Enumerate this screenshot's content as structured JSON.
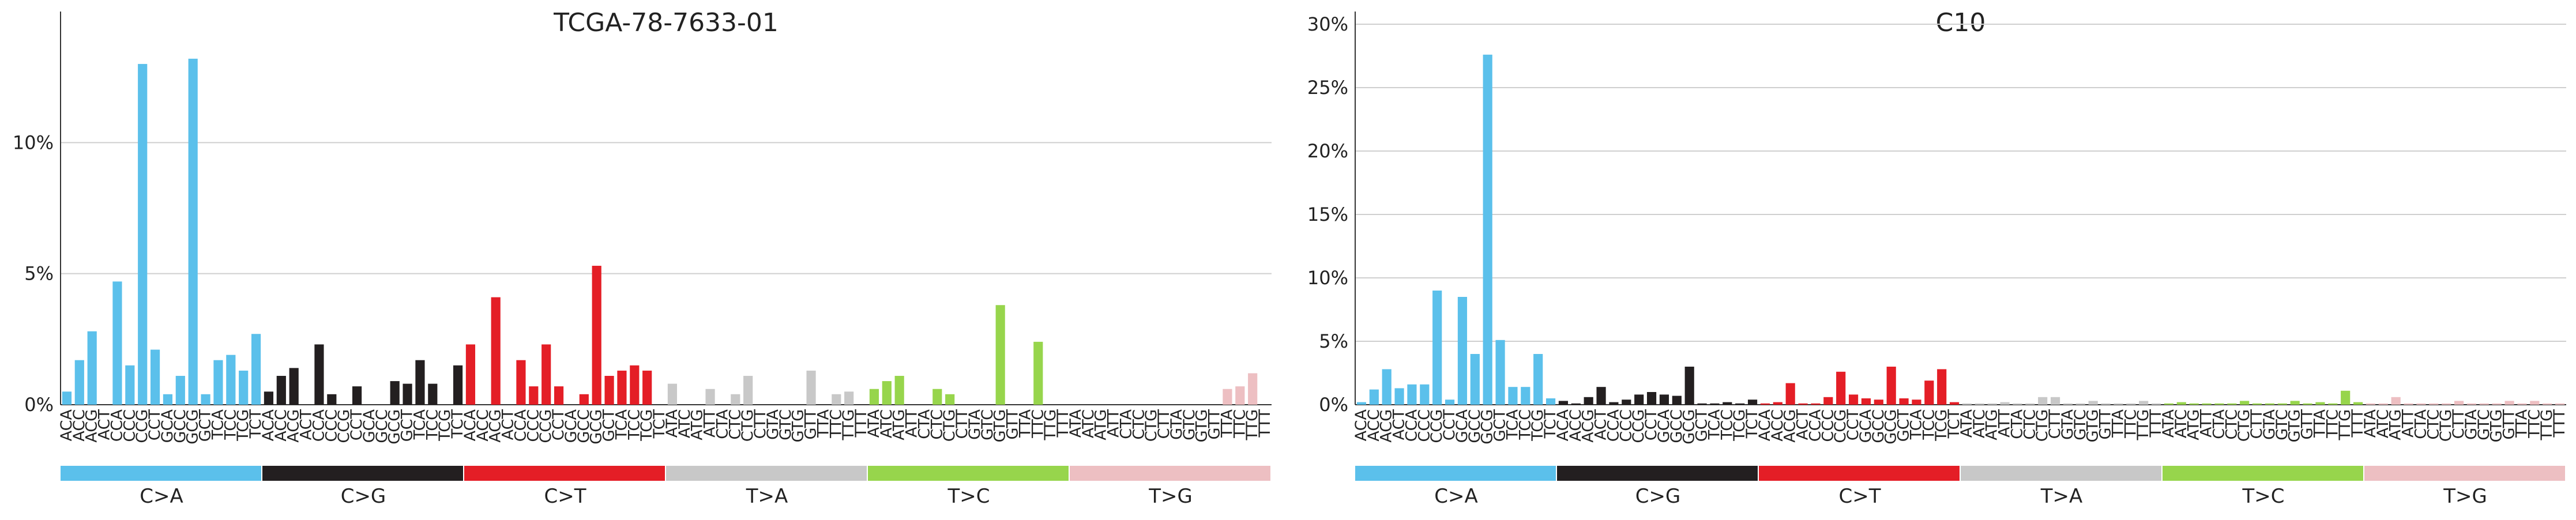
{
  "chart_data": [
    {
      "type": "bar",
      "title": "TCGA-78-7633-01",
      "xlabel": "",
      "ylabel": "",
      "ylim": [
        0,
        15
      ],
      "yticks": [
        0,
        5,
        10
      ],
      "ytick_labels": [
        "0%",
        "5%",
        "10%"
      ],
      "grid": true,
      "legend": "none",
      "groups": [
        {
          "name": "C>A",
          "color": "#5BC0EB",
          "contexts": [
            "ACA",
            "ACC",
            "ACG",
            "ACT",
            "CCA",
            "CCC",
            "CCG",
            "CCT",
            "GCA",
            "GCC",
            "GCG",
            "GCT",
            "TCA",
            "TCC",
            "TCG",
            "TCT"
          ],
          "values": [
            0.5,
            1.7,
            2.8,
            0.0,
            4.7,
            1.5,
            13.0,
            2.1,
            0.4,
            1.1,
            13.2,
            0.4,
            1.7,
            1.9,
            1.3,
            2.7
          ]
        },
        {
          "name": "C>G",
          "color": "#231F20",
          "contexts": [
            "ACA",
            "ACC",
            "ACG",
            "ACT",
            "CCA",
            "CCC",
            "CCG",
            "CCT",
            "GCA",
            "GCC",
            "GCG",
            "GCT",
            "TCA",
            "TCC",
            "TCG",
            "TCT"
          ],
          "values": [
            0.5,
            1.1,
            1.4,
            0.0,
            2.3,
            0.4,
            0.0,
            0.7,
            0.0,
            0.0,
            0.9,
            0.8,
            1.7,
            0.8,
            0.0,
            1.5
          ]
        },
        {
          "name": "C>T",
          "color": "#E41E26",
          "contexts": [
            "ACA",
            "ACC",
            "ACG",
            "ACT",
            "CCA",
            "CCC",
            "CCG",
            "CCT",
            "GCA",
            "GCC",
            "GCG",
            "GCT",
            "TCA",
            "TCC",
            "TCG",
            "TCT"
          ],
          "values": [
            2.3,
            0.0,
            4.1,
            0.0,
            1.7,
            0.7,
            2.3,
            0.7,
            0.0,
            0.4,
            5.3,
            1.1,
            1.3,
            1.5,
            1.3,
            0.0
          ]
        },
        {
          "name": "T>A",
          "color": "#C8C8C8",
          "contexts": [
            "ATA",
            "ATC",
            "ATG",
            "ATT",
            "CTA",
            "CTC",
            "CTG",
            "CTT",
            "GTA",
            "GTC",
            "GTG",
            "GTT",
            "TTA",
            "TTC",
            "TTG",
            "TTT"
          ],
          "values": [
            0.8,
            0.0,
            0.0,
            0.6,
            0.0,
            0.4,
            1.1,
            0.0,
            0.0,
            0.0,
            0.0,
            1.3,
            0.0,
            0.4,
            0.5,
            0.0
          ]
        },
        {
          "name": "T>C",
          "color": "#97D54C",
          "contexts": [
            "ATA",
            "ATC",
            "ATG",
            "ATT",
            "CTA",
            "CTC",
            "CTG",
            "CTT",
            "GTA",
            "GTC",
            "GTG",
            "GTT",
            "TTA",
            "TTC",
            "TTG",
            "TTT"
          ],
          "values": [
            0.6,
            0.9,
            1.1,
            0.0,
            0.0,
            0.6,
            0.4,
            0.0,
            0.0,
            0.0,
            3.8,
            0.0,
            0.0,
            2.4,
            0.0,
            0.0
          ]
        },
        {
          "name": "T>G",
          "color": "#EDBFC2",
          "contexts": [
            "ATA",
            "ATC",
            "ATG",
            "ATT",
            "CTA",
            "CTC",
            "CTG",
            "CTT",
            "GTA",
            "GTC",
            "GTG",
            "GTT",
            "TTA",
            "TTC",
            "TTG",
            "TTT"
          ],
          "values": [
            0.0,
            0.0,
            0.0,
            0.0,
            0.0,
            0.0,
            0.0,
            0.0,
            0.0,
            0.0,
            0.0,
            0.0,
            0.6,
            0.7,
            1.2,
            0.0
          ]
        }
      ]
    },
    {
      "type": "bar",
      "title": "C10",
      "xlabel": "",
      "ylabel": "",
      "ylim": [
        0,
        31
      ],
      "yticks": [
        0,
        5,
        10,
        15,
        20,
        25,
        30
      ],
      "ytick_labels": [
        "0%",
        "5%",
        "10%",
        "15%",
        "20%",
        "25%",
        "30%"
      ],
      "grid": true,
      "legend": "none",
      "groups": [
        {
          "name": "C>A",
          "color": "#5BC0EB",
          "contexts": [
            "ACA",
            "ACC",
            "ACG",
            "ACT",
            "CCA",
            "CCC",
            "CCG",
            "CCT",
            "GCA",
            "GCC",
            "GCG",
            "GCT",
            "TCA",
            "TCC",
            "TCG",
            "TCT"
          ],
          "values": [
            0.2,
            1.2,
            2.8,
            1.3,
            1.6,
            1.6,
            9.0,
            0.4,
            8.5,
            4.0,
            27.6,
            5.1,
            1.4,
            1.4,
            4.0,
            0.5
          ]
        },
        {
          "name": "C>G",
          "color": "#231F20",
          "contexts": [
            "ACA",
            "ACC",
            "ACG",
            "ACT",
            "CCA",
            "CCC",
            "CCG",
            "CCT",
            "GCA",
            "GCC",
            "GCG",
            "GCT",
            "TCA",
            "TCC",
            "TCG",
            "TCT"
          ],
          "values": [
            0.3,
            0.1,
            0.6,
            1.4,
            0.2,
            0.4,
            0.8,
            1.0,
            0.8,
            0.7,
            3.0,
            0.1,
            0.1,
            0.2,
            0.1,
            0.4
          ]
        },
        {
          "name": "C>T",
          "color": "#E41E26",
          "contexts": [
            "ACA",
            "ACC",
            "ACG",
            "ACT",
            "CCA",
            "CCC",
            "CCG",
            "CCT",
            "GCA",
            "GCC",
            "GCG",
            "GCT",
            "TCA",
            "TCC",
            "TCG",
            "TCT"
          ],
          "values": [
            0.1,
            0.2,
            1.7,
            0.1,
            0.1,
            0.6,
            2.6,
            0.8,
            0.5,
            0.4,
            3.0,
            0.5,
            0.4,
            1.9,
            2.8,
            0.2
          ]
        },
        {
          "name": "T>A",
          "color": "#C8C8C8",
          "contexts": [
            "ATA",
            "ATC",
            "ATG",
            "ATT",
            "CTA",
            "CTC",
            "CTG",
            "CTT",
            "GTA",
            "GTC",
            "GTG",
            "GTT",
            "TTA",
            "TTC",
            "TTG",
            "TTT"
          ],
          "values": [
            0.1,
            0.1,
            0.1,
            0.2,
            0.1,
            0.1,
            0.6,
            0.6,
            0.1,
            0.1,
            0.3,
            0.1,
            0.1,
            0.1,
            0.3,
            0.1
          ]
        },
        {
          "name": "T>C",
          "color": "#97D54C",
          "contexts": [
            "ATA",
            "ATC",
            "ATG",
            "ATT",
            "CTA",
            "CTC",
            "CTG",
            "CTT",
            "GTA",
            "GTC",
            "GTG",
            "GTT",
            "TTA",
            "TTC",
            "TTG",
            "TTT"
          ],
          "values": [
            0.1,
            0.2,
            0.1,
            0.1,
            0.1,
            0.1,
            0.3,
            0.1,
            0.1,
            0.1,
            0.3,
            0.1,
            0.2,
            0.1,
            1.1,
            0.2
          ]
        },
        {
          "name": "T>G",
          "color": "#EDBFC2",
          "contexts": [
            "ATA",
            "ATC",
            "ATG",
            "ATT",
            "CTA",
            "CTC",
            "CTG",
            "CTT",
            "GTA",
            "GTC",
            "GTG",
            "GTT",
            "TTA",
            "TTC",
            "TTG",
            "TTT"
          ],
          "values": [
            0.1,
            0.1,
            0.6,
            0.1,
            0.1,
            0.1,
            0.1,
            0.3,
            0.1,
            0.1,
            0.1,
            0.3,
            0.1,
            0.3,
            0.1,
            0.1
          ]
        }
      ]
    }
  ]
}
